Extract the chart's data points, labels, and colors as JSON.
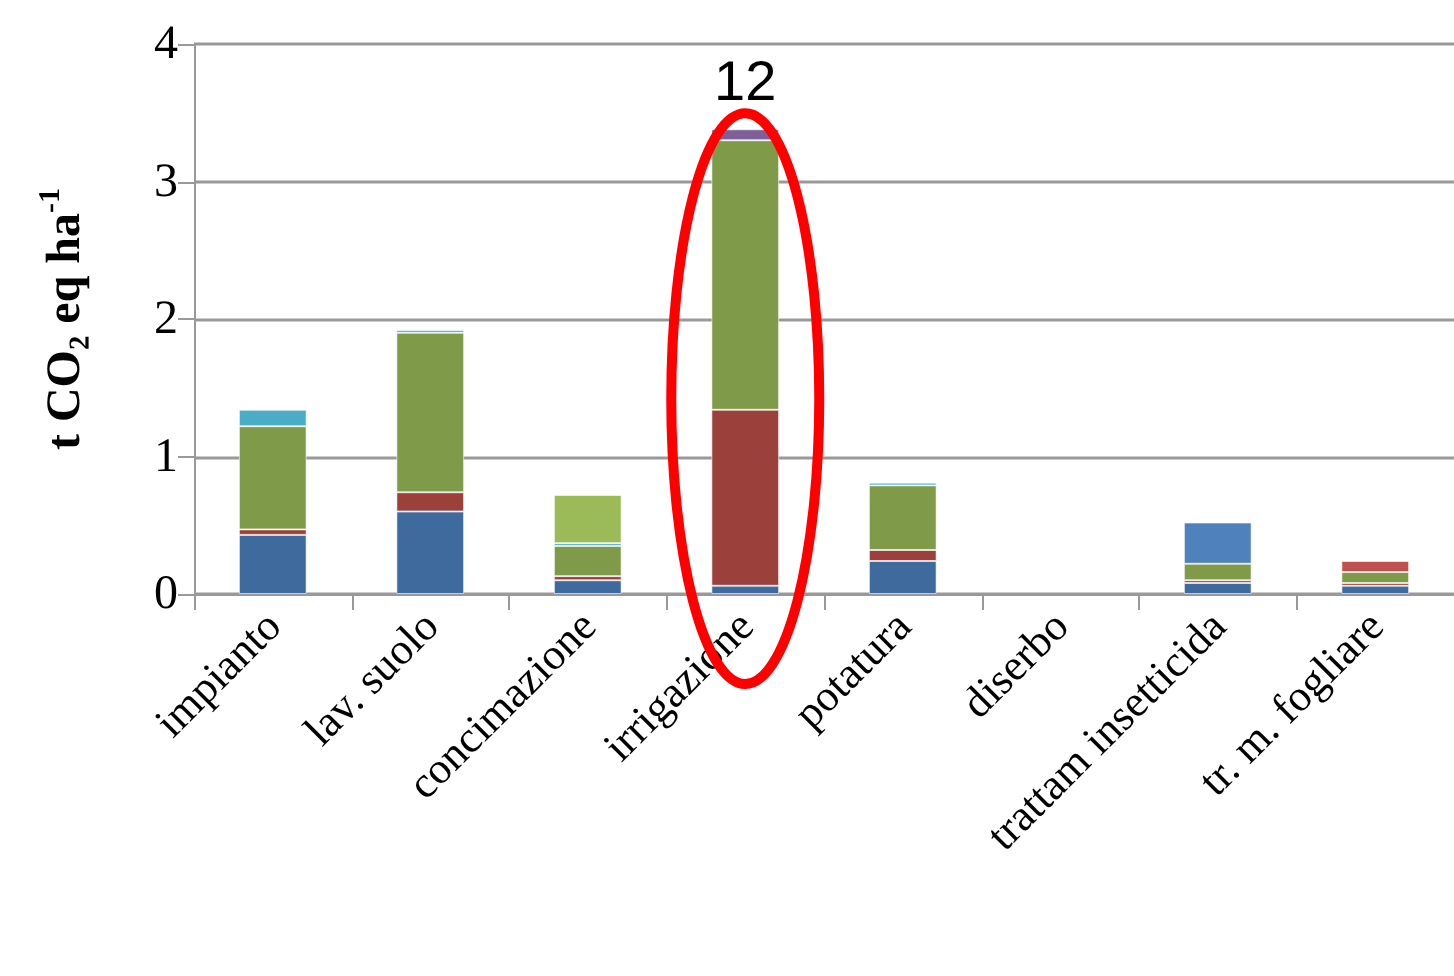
{
  "chart_data": {
    "type": "bar",
    "stacked": true,
    "ylabel": "t CO₂ eq ha$^{-1}$",
    "categories": [
      "impianto",
      "lav. suolo",
      "concimazione",
      "irrigazione",
      "potatura",
      "diserbo",
      "trattam insetticida",
      "tr. m. fogliare"
    ],
    "series": [
      {
        "color": "#3f6a9e",
        "values": [
          0.43,
          0.6,
          0.1,
          0.06,
          0.24,
          null,
          0.08,
          0.06
        ]
      },
      {
        "color": "#9c403c",
        "values": [
          0.04,
          0.14,
          0.03,
          1.28,
          0.08,
          null,
          0.02,
          0.02
        ]
      },
      {
        "color": "#7f9a48",
        "values": [
          0.75,
          1.16,
          0.22,
          1.96,
          0.47,
          null,
          0.12,
          0.08
        ]
      },
      {
        "color": "#7f5f9a",
        "values": [
          null,
          null,
          null,
          0.08,
          null,
          null,
          null,
          null
        ]
      },
      {
        "color": "#4bacc6",
        "values": [
          0.12,
          0.02,
          0.02,
          null,
          0.02,
          null,
          null,
          null
        ]
      },
      {
        "color": "#9bbb59",
        "values": [
          null,
          null,
          0.35,
          null,
          null,
          null,
          null,
          null
        ]
      },
      {
        "color": "#4f81bd",
        "values": [
          null,
          null,
          null,
          null,
          null,
          null,
          0.3,
          null
        ]
      },
      {
        "color": "#c0504d",
        "values": [
          null,
          null,
          null,
          null,
          null,
          null,
          null,
          0.08
        ]
      }
    ],
    "ylim": [
      0,
      4
    ],
    "yticks": [
      0,
      1,
      2,
      3,
      4
    ],
    "grid": "y",
    "legend": false,
    "annotations": [
      "12"
    ]
  }
}
